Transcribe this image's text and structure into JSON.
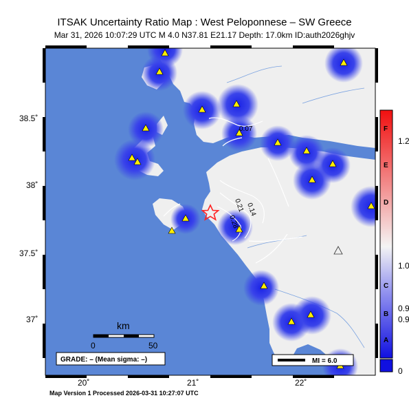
{
  "header": {
    "title": "ITSAK Uncertainty Ratio Map : West Peloponnese – SW Greece",
    "subtitle": "Mar 31, 2026 10:07:29 UTC   M 4.0   N37.81 E21.17   Depth: 17.0km   ID:auth2026ghjv"
  },
  "axes": {
    "lat_ticks": [
      "38.5˚",
      "38˚",
      "37.5˚",
      "37˚"
    ],
    "lon_ticks": [
      "20˚",
      "21˚",
      "22˚"
    ]
  },
  "contours": [
    "0.07",
    "0.14",
    "0.21",
    "0.28"
  ],
  "scalebar": {
    "unit": "km",
    "min": "0",
    "max": "50"
  },
  "grade": {
    "text": "GRADE: – (Mean sigma: –)"
  },
  "mi_legend": {
    "text": "MI = 6.0"
  },
  "colorbar": {
    "letters": [
      "F",
      "E",
      "D",
      "C",
      "B",
      "A"
    ],
    "values": [
      "1.2",
      "1.0",
      "0.9",
      "0.9",
      "0"
    ]
  },
  "footer": {
    "text": "Map Version 1 Processed 2026-03-31 10:27:07 UTC"
  },
  "epicenter": {
    "lat": 37.81,
    "lon": 21.17,
    "depth_km": 17.0,
    "magnitude": 4.0
  },
  "colors": {
    "sea": "#5a86d6",
    "land": "#efefef",
    "station": "#ffee00",
    "epicenter": "#ff2222",
    "blue_halo": "#1a22e6"
  }
}
